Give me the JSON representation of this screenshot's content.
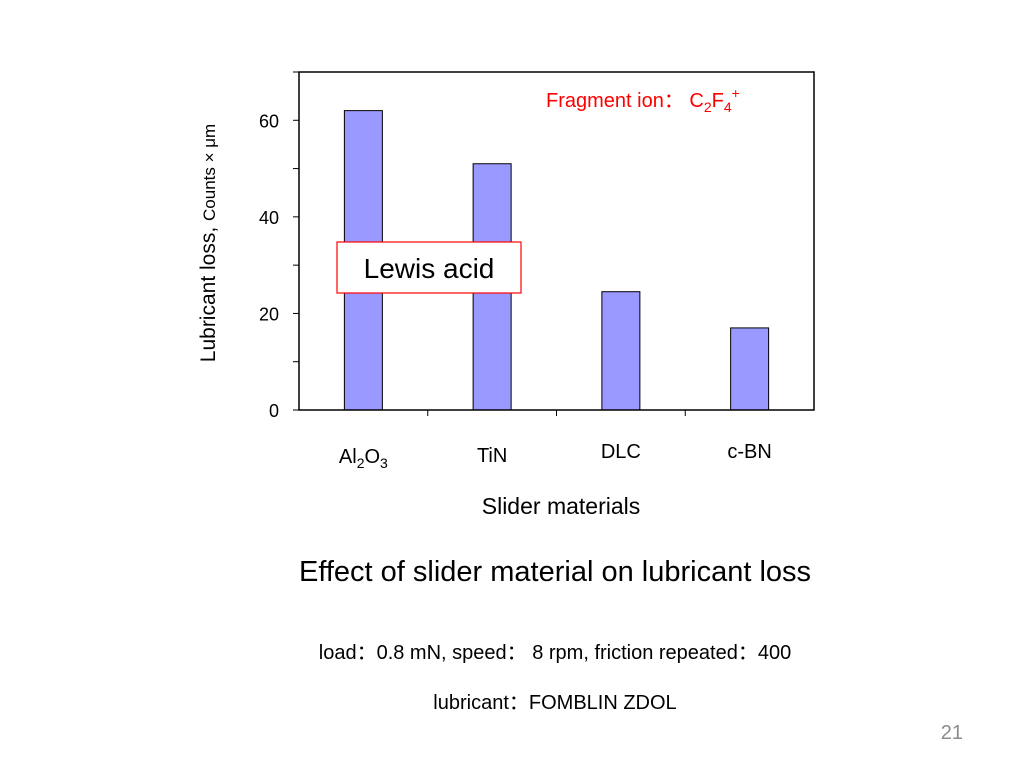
{
  "chart_data": {
    "type": "bar",
    "categories": [
      "Al2O3",
      "TiN",
      "DLC",
      "c-BN"
    ],
    "category_labels": [
      {
        "base": "Al",
        "sub1": "2",
        "mid": "O",
        "sub2": "3"
      },
      {
        "base": "TiN"
      },
      {
        "base": "DLC"
      },
      {
        "base": "c-BN"
      }
    ],
    "values": [
      62,
      51,
      24.5,
      17
    ],
    "ylim": [
      0,
      70
    ],
    "yticks": [
      0,
      20,
      40,
      60
    ],
    "ylabel": {
      "main": "Lubricant loss, ",
      "unit": "Counts × μm"
    },
    "xlabel": "Slider materials",
    "grid": false,
    "bar_color": "#9999ff",
    "annotations": {
      "fragment": {
        "prefix": "Fragment ion： ",
        "c": "C",
        "sub_c": "2",
        "f": "F",
        "sub_f": "4",
        "sup": "+",
        "color": "#ff0000"
      },
      "lewis": {
        "text": "Lewis acid",
        "border_color": "#ff0000"
      }
    }
  },
  "caption": {
    "title": "Effect of slider material on lubricant loss",
    "conditions": "load：0.8 mN,   speed： 8 rpm,    friction repeated：400",
    "lubricant": "lubricant：FOMBLIN  ZDOL"
  },
  "slide_number": "21"
}
